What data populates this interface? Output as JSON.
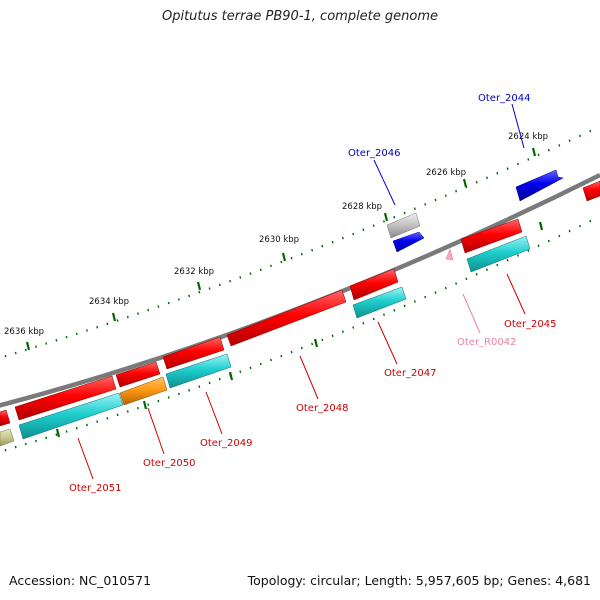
{
  "title": "Opitutus terrae PB90-1, complete genome",
  "footer": {
    "accession": "Accession: NC_010571",
    "summary": "Topology: circular; Length: 5,957,605 bp; Genes: 4,681"
  },
  "ruler": {
    "ticks": [
      "2624 kbp",
      "2626 kbp",
      "2628 kbp",
      "2630 kbp",
      "2632 kbp",
      "2634 kbp",
      "2636 kbp"
    ]
  },
  "genes": [
    {
      "label": "Oter_2044",
      "color": "#0000cc"
    },
    {
      "label": "Oter_2045",
      "color": "#cc0000"
    },
    {
      "label": "Oter_R0042",
      "color": "#f080a0"
    },
    {
      "label": "Oter_2046",
      "color": "#0000cc"
    },
    {
      "label": "Oter_2047",
      "color": "#cc0000"
    },
    {
      "label": "Oter_2048",
      "color": "#cc0000"
    },
    {
      "label": "Oter_2049",
      "color": "#cc0000"
    },
    {
      "label": "Oter_2050",
      "color": "#cc0000"
    },
    {
      "label": "Oter_2051",
      "color": "#cc0000"
    }
  ],
  "colors": {
    "backbone": "#7a7a7a",
    "cds_forward": "#ff0000",
    "cds_orf": "#1ecfcf",
    "rna": "#ff9a14",
    "blue_gene": "#0000ee",
    "pseudo": "#c0c0c0",
    "tick": "#006600",
    "olive": "#c8c890"
  }
}
